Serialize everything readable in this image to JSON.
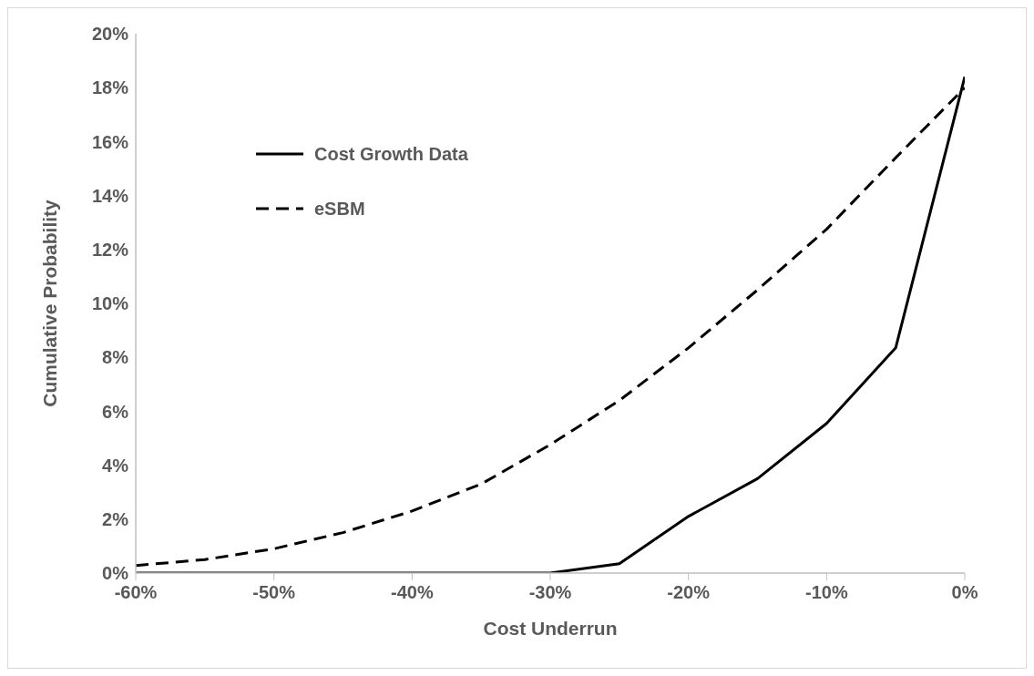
{
  "chart_data": {
    "type": "line",
    "xlabel": "Cost Underrun",
    "ylabel": "Cumulative Probability",
    "x": [
      -60,
      -55,
      -50,
      -45,
      -40,
      -35,
      -30,
      -25,
      -20,
      -15,
      -10,
      -5,
      0
    ],
    "series": [
      {
        "name": "Cost Growth Data",
        "color": "#000000",
        "line_style": "solid",
        "values": [
          0,
          0,
          0,
          0,
          0,
          0,
          0,
          0.35,
          2.1,
          3.5,
          5.55,
          8.35,
          18.4
        ]
      },
      {
        "name": "eSBM",
        "color": "#000000",
        "line_style": "dashed",
        "values": [
          0.28,
          0.5,
          0.9,
          1.5,
          2.3,
          3.3,
          4.76,
          6.4,
          8.35,
          10.5,
          12.75,
          15.4,
          18.0
        ]
      }
    ],
    "xlim": [
      -60,
      0
    ],
    "xticks": [
      {
        "value": -60,
        "label": "-60%"
      },
      {
        "value": -50,
        "label": "-50%"
      },
      {
        "value": -40,
        "label": "-40%"
      },
      {
        "value": -30,
        "label": "-30%"
      },
      {
        "value": -20,
        "label": "-20%"
      },
      {
        "value": -10,
        "label": "-10%"
      },
      {
        "value": 0,
        "label": "0%"
      }
    ],
    "ylim": [
      0,
      20
    ],
    "yticks": [
      {
        "value": 0,
        "label": "0%"
      },
      {
        "value": 2,
        "label": "2%"
      },
      {
        "value": 4,
        "label": "4%"
      },
      {
        "value": 6,
        "label": "6%"
      },
      {
        "value": 8,
        "label": "8%"
      },
      {
        "value": 10,
        "label": "10%"
      },
      {
        "value": 12,
        "label": "12%"
      },
      {
        "value": 14,
        "label": "14%"
      },
      {
        "value": 16,
        "label": "16%"
      },
      {
        "value": 18,
        "label": "18%"
      },
      {
        "value": 20,
        "label": "20%"
      }
    ],
    "grid": false,
    "legend": "top left",
    "marker": "none"
  }
}
